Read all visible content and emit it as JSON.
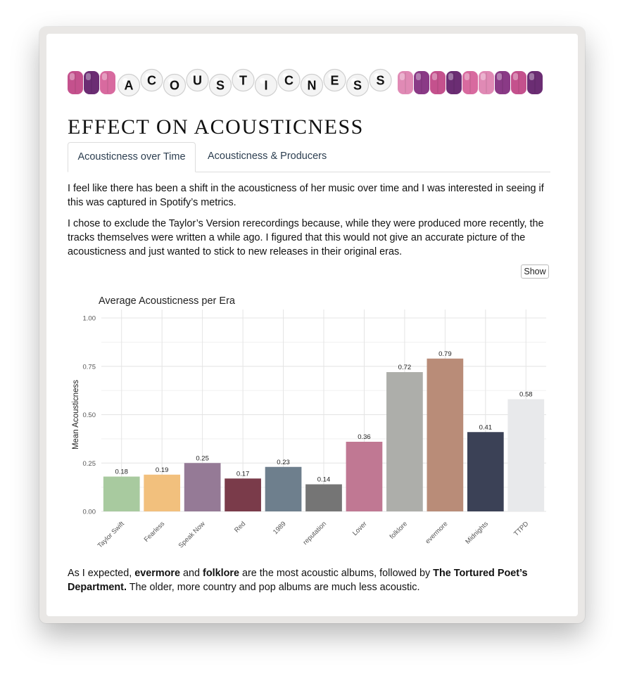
{
  "banner": {
    "letters": [
      "A",
      "C",
      "O",
      "U",
      "S",
      "T",
      "I",
      "C",
      "N",
      "E",
      "S",
      "S"
    ]
  },
  "heading": "EFFECT ON ACOUSTICNESS",
  "tabs": [
    {
      "label": "Acousticness over Time",
      "active": true
    },
    {
      "label": "Acousticness & Producers",
      "active": false
    }
  ],
  "paragraphs": [
    "I feel like there has been a shift in the acousticness of her music over time and I was interested in seeing if this was captured in Spotify’s metrics.",
    "I chose to exclude the Taylor’s Version rerecordings because, while they were produced more recently, the tracks themselves were written a while ago. I figured that this would not give an accurate picture of the acousticness and just wanted to stick to new releases in their original eras."
  ],
  "show_label": "Show",
  "conclusion": {
    "t1": "As I expected, ",
    "b1": "evermore",
    "t2": " and ",
    "b2": "folklore",
    "t3": " are the most acoustic albums, followed by ",
    "b3": "The Tortured Poet’s Department.",
    "t4": " The older, more country and pop albums are much less acoustic."
  },
  "colors": {
    "beads": [
      "#c4518d",
      "#6b2d73",
      "#d86a9f",
      "#e08ab5",
      "#8a3a86"
    ],
    "link": "#2c3e50"
  },
  "chart_data": {
    "type": "bar",
    "title": "Average Acousticness per Era",
    "xlabel": "",
    "ylabel": "Mean Acousticness",
    "ylim": [
      0,
      1
    ],
    "yticks": [
      "0.00",
      "0.25",
      "0.50",
      "0.75",
      "1.00"
    ],
    "ytick_values": [
      0,
      0.25,
      0.5,
      0.75,
      1.0
    ],
    "grid": true,
    "categories": [
      "Taylor Swift",
      "Fearless",
      "Speak Now",
      "Red",
      "1989",
      "reputation",
      "Lover",
      "folklore",
      "evermore",
      "Midnights",
      "TTPD"
    ],
    "values": [
      0.18,
      0.19,
      0.25,
      0.17,
      0.23,
      0.14,
      0.36,
      0.72,
      0.79,
      0.41,
      0.58
    ],
    "labels": [
      "0.18",
      "0.19",
      "0.25",
      "0.17",
      "0.23",
      "0.14",
      "0.36",
      "0.72",
      "0.79",
      "0.41",
      "0.58"
    ],
    "colors": [
      "#a8ca9f",
      "#f2c07d",
      "#957a96",
      "#7a3b4a",
      "#6e7f8d",
      "#757575",
      "#c07893",
      "#adaeaa",
      "#b98c78",
      "#3b4156",
      "#e8e9eb"
    ]
  }
}
